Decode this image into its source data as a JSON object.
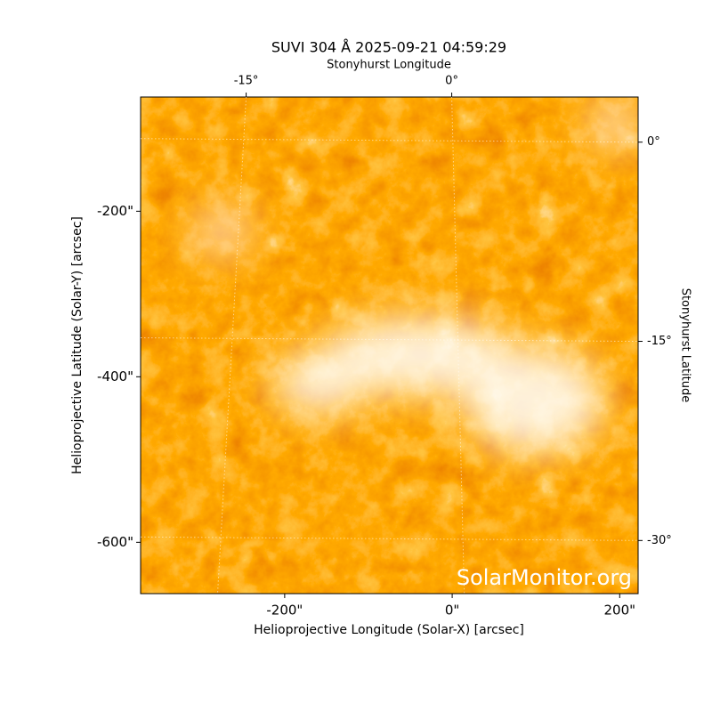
{
  "chart_data": {
    "type": "image",
    "title": "SUVI 304 Å 2025-09-21 04:59:29",
    "xlabel": "Helioprojective Longitude (Solar-X) [arcsec]",
    "ylabel": "Helioprojective Latitude (Solar-Y) [arcsec]",
    "x2label": "Stonyhurst Longitude",
    "y2label": "Stonyhurst Latitude",
    "xlim": [
      -372,
      222
    ],
    "ylim": [
      -662,
      -62
    ],
    "xticks": [
      {
        "value": -200,
        "label": "-200\""
      },
      {
        "value": 0,
        "label": "0\""
      },
      {
        "value": 200,
        "label": "200\""
      }
    ],
    "yticks": [
      {
        "value": -200,
        "label": "-200\""
      },
      {
        "value": -400,
        "label": "-400\""
      },
      {
        "value": -600,
        "label": "-600\""
      }
    ],
    "x2lim": [
      -22.7,
      13.6
    ],
    "x2ticks": [
      {
        "value": -15,
        "label": "-15°"
      },
      {
        "value": 0,
        "label": "0°"
      }
    ],
    "y2lim": [
      -34,
      3.4
    ],
    "y2ticks": [
      {
        "value": 0,
        "label": "0°"
      },
      {
        "value": -15,
        "label": "-15°"
      },
      {
        "value": -30,
        "label": "-30°"
      }
    ],
    "grid": true,
    "watermark": "SolarMonitor.org"
  }
}
